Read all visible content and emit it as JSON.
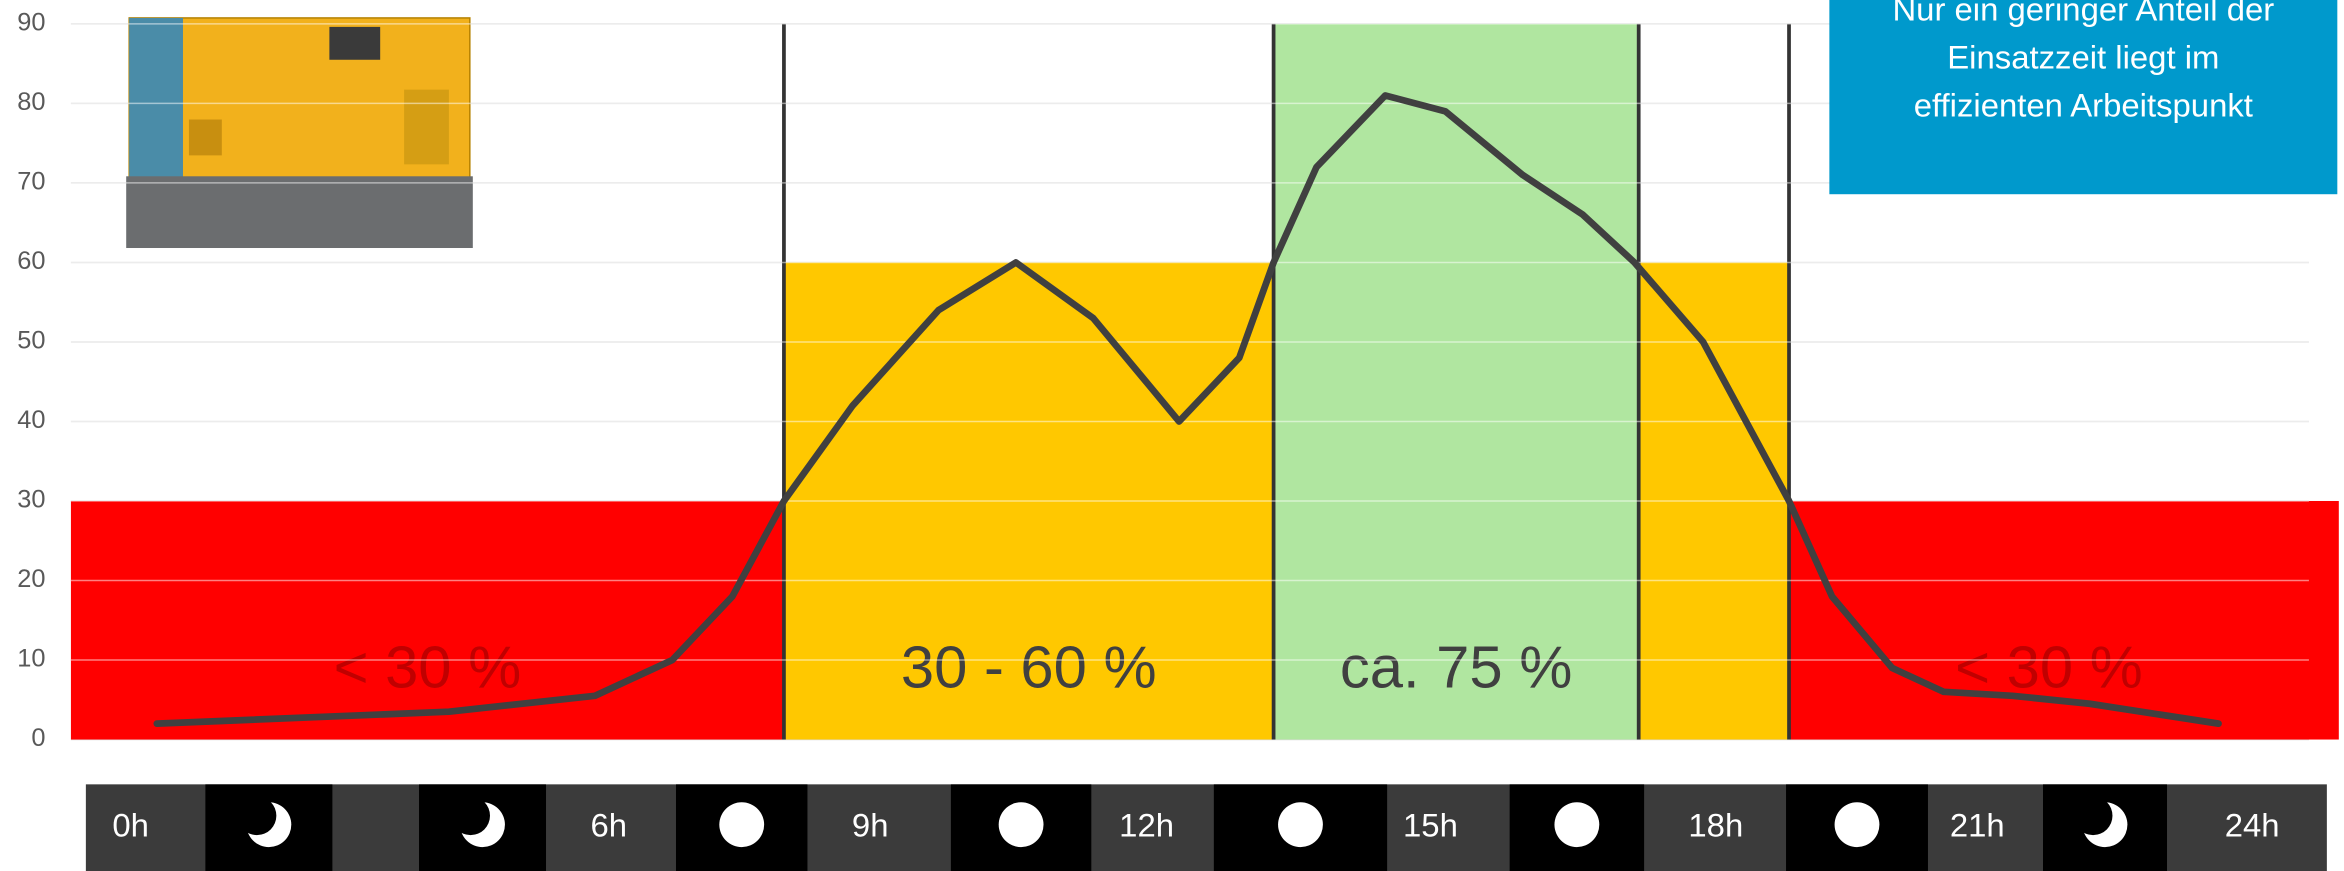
{
  "chart_data": {
    "type": "line",
    "x": [
      0,
      3.4,
      5.1,
      6.0,
      6.7,
      7.3,
      8.1,
      9.1,
      10.0,
      10.9,
      11.9,
      12.6,
      13.0,
      13.5,
      14.3,
      15.0,
      15.9,
      16.6,
      17.2,
      18.0,
      18.5,
      19.0,
      19.5,
      20.2,
      20.8,
      21.6,
      22.5,
      24
    ],
    "values": [
      2,
      3.5,
      5.5,
      10,
      18,
      30,
      42,
      54,
      60,
      53,
      40,
      48,
      60,
      72,
      81,
      79,
      71,
      66,
      60,
      50,
      40,
      30,
      18,
      9,
      6,
      5.5,
      4.5,
      2
    ],
    "color": "#404040",
    "xlim": [
      -1,
      25.4
    ],
    "ylim": [
      0,
      90
    ],
    "yticks": [
      0,
      10,
      20,
      30,
      40,
      50,
      60,
      70,
      80,
      90
    ],
    "grid": true,
    "zones": [
      {
        "x": [
          -1,
          7.3
        ],
        "height": 30,
        "color": "#ff0000",
        "label": "< 30 %",
        "label_color": "#c00000"
      },
      {
        "x": [
          7.3,
          13.0
        ],
        "height": 60,
        "color": "#ffc800",
        "label": "30 - 60 %",
        "label_color": "#404040"
      },
      {
        "x": [
          13.0,
          17.25
        ],
        "height": 90,
        "color": "#b0e6a0",
        "label": "ca. 75 %",
        "label_color": "#404040"
      },
      {
        "x": [
          17.25,
          19.0
        ],
        "height": 60,
        "color": "#ffc800"
      },
      {
        "x": [
          19.0,
          25.4
        ],
        "height": 30,
        "color": "#ff0000",
        "label": "< 30 %",
        "label_color": "#c00000"
      }
    ],
    "annotation": {
      "lines": [
        "Nur ein geringer Anteil der",
        "Einsatzzeit liegt im",
        "effizienten Arbeitspunkt"
      ],
      "color": "#0099cc"
    },
    "time_labels": [
      "0h",
      "6h",
      "9h",
      "12h",
      "15h",
      "18h",
      "21h",
      "24h"
    ]
  }
}
